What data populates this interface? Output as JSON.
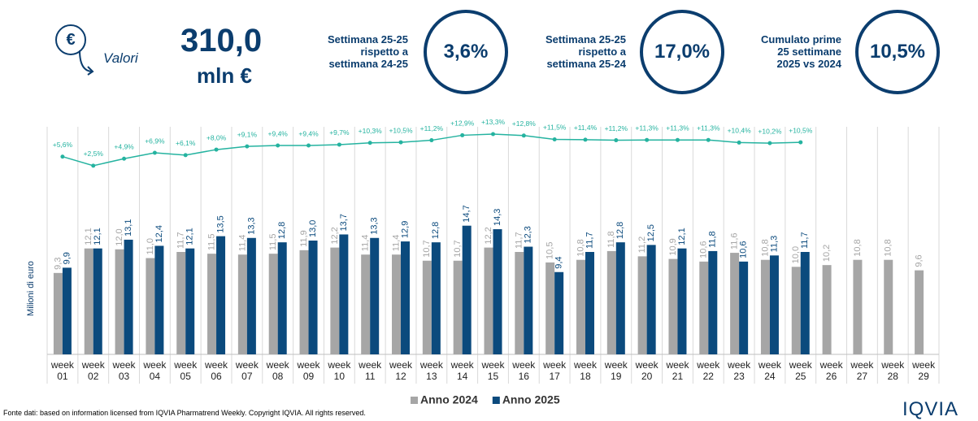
{
  "header": {
    "kpi_main": {
      "icon": "€",
      "label": "Valori",
      "value": "310,0",
      "unit": "mln €"
    },
    "kpis": [
      {
        "label_lines": [
          "Settimana 25-25",
          "rispetto a",
          "settimana 24-25"
        ],
        "value": "3,6%"
      },
      {
        "label_lines": [
          "Settimana 25-25",
          "rispetto a",
          "settimana 25-24"
        ],
        "value": "17,0%"
      },
      {
        "label_lines": [
          "Cumulato prime",
          "25 settimane",
          "2025 vs 2024"
        ],
        "value": "10,5%"
      }
    ]
  },
  "chart_data": {
    "type": "bar",
    "y_label": "Milioni di euro",
    "categories": [
      "week 01",
      "week 02",
      "week 03",
      "week 04",
      "week 05",
      "week 06",
      "week 07",
      "week 08",
      "week 09",
      "week 10",
      "week 11",
      "week 12",
      "week 13",
      "week 14",
      "week 15",
      "week 16",
      "week 17",
      "week 18",
      "week 19",
      "week 20",
      "week 21",
      "week 22",
      "week 23",
      "week 24",
      "week 25",
      "week 26",
      "week 27",
      "week 28",
      "week 29"
    ],
    "series": [
      {
        "name": "Anno 2024",
        "color": "#a6a6a6",
        "values": [
          9.3,
          12.1,
          12.0,
          11.0,
          11.7,
          11.5,
          11.4,
          11.5,
          11.9,
          12.2,
          11.4,
          11.4,
          10.7,
          10.7,
          12.2,
          11.7,
          10.5,
          10.8,
          11.8,
          11.2,
          10.9,
          10.6,
          11.6,
          10.8,
          10.0,
          10.2,
          10.8,
          10.8,
          9.6
        ],
        "value_labels": [
          "9,3",
          "12,1",
          "12,0",
          "11,0",
          "11,7",
          "11,5",
          "11,4",
          "11,5",
          "11,9",
          "12,2",
          "11,4",
          "11,4",
          "10,7",
          "10,7",
          "12,2",
          "11,7",
          "10,5",
          "10,8",
          "11,8",
          "11,2",
          "10,9",
          "10,6",
          "11,6",
          "10,8",
          "10,0",
          "10,2",
          "10,8",
          "10,8",
          "9,6"
        ]
      },
      {
        "name": "Anno 2025",
        "color": "#0b4a7d",
        "values": [
          9.9,
          12.1,
          13.1,
          12.4,
          12.1,
          13.5,
          13.3,
          12.8,
          13.0,
          13.7,
          13.3,
          12.9,
          12.8,
          14.7,
          14.3,
          12.3,
          9.4,
          11.7,
          12.8,
          12.5,
          12.1,
          11.8,
          10.6,
          11.3,
          11.7,
          null,
          null,
          null,
          null
        ],
        "value_labels": [
          "9,9",
          "12,1",
          "13,1",
          "12,4",
          "12,1",
          "13,5",
          "13,3",
          "12,8",
          "13,0",
          "13,7",
          "13,3",
          "12,9",
          "12,8",
          "14,7",
          "14,3",
          "12,3",
          "9,4",
          "11,7",
          "12,8",
          "12,5",
          "12,1",
          "11,8",
          "10,6",
          "11,3",
          "11,7",
          null,
          null,
          null,
          null
        ]
      },
      {
        "type": "line",
        "axis": "y2",
        "color": "#25b3a0",
        "values": [
          5.6,
          2.5,
          4.9,
          6.9,
          6.1,
          8.0,
          9.1,
          9.4,
          9.4,
          9.7,
          10.3,
          10.5,
          11.2,
          12.9,
          13.3,
          12.8,
          11.5,
          11.4,
          11.2,
          11.3,
          11.3,
          11.3,
          10.4,
          10.2,
          10.5,
          null,
          null,
          null,
          null
        ],
        "value_labels": [
          "+5,6%",
          "+2,5%",
          "+4,9%",
          "+6,9%",
          "+6,1%",
          "+8,0%",
          "+9,1%",
          "+9,4%",
          "+9,4%",
          "+9,7%",
          "+10,3%",
          "+10,5%",
          "+11,2%",
          "+12,9%",
          "+13,3%",
          "+12,8%",
          "+11,5%",
          "+11,4%",
          "+11,2%",
          "+11,3%",
          "+11,3%",
          "+11,3%",
          "+10,4%",
          "+10,2%",
          "+10,5%",
          null,
          null,
          null,
          null
        ]
      }
    ],
    "ylim": [
      0,
      26
    ],
    "y2lim": [
      -62,
      15.8
    ],
    "source": "Fonte dati: based on information licensed from IQVIA Pharmatrend Weekly. Copyright IQVIA. All rights reserved.",
    "logo": "IQVIA"
  }
}
